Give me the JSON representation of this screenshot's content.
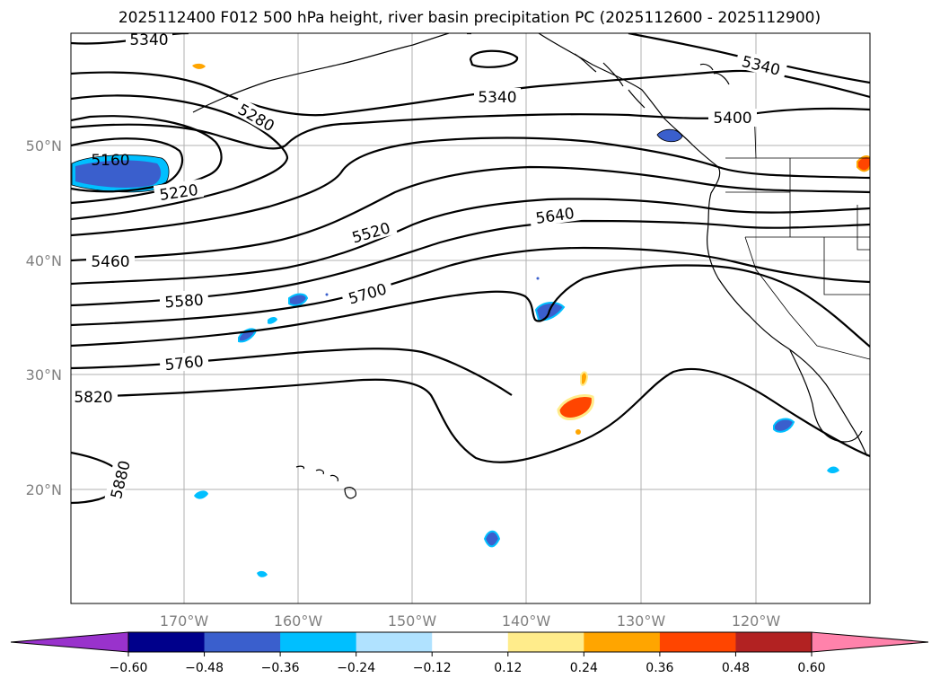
{
  "title": "2025112400 F012 500 hPa height, river basin precipitation PC (2025112600 - 2025112900)",
  "map": {
    "lat_ticks": [
      "50°N",
      "40°N",
      "30°N",
      "20°N"
    ],
    "lon_ticks": [
      "170°W",
      "160°W",
      "150°W",
      "140°W",
      "130°W",
      "120°W"
    ],
    "contour_labels": [
      "5340",
      "5340",
      "5340",
      "5280",
      "5400",
      "5160",
      "5220",
      "5520",
      "5640",
      "5460",
      "5580",
      "5700",
      "5760",
      "5820",
      "5880"
    ]
  },
  "colorbar": {
    "ticks": [
      "−0.60",
      "−0.48",
      "−0.36",
      "−0.24",
      "−0.12",
      "0.12",
      "0.24",
      "0.36",
      "0.48",
      "0.60"
    ],
    "colors": [
      "#9932cc",
      "#00008b",
      "#3a5fcd",
      "#00bfff",
      "#b0e2ff",
      "#ffffff",
      "#ffec8b",
      "#ffa500",
      "#ff4500",
      "#b22222",
      "#ff82ab"
    ]
  },
  "chart_data": {
    "type": "map-contour",
    "title": "2025112400 F012 500 hPa height, river basin precipitation PC (2025112600 - 2025112900)",
    "variable": "500 hPa geopotential height (m) with precipitation PC shading",
    "contour_levels": [
      5160,
      5220,
      5280,
      5340,
      5400,
      5460,
      5520,
      5580,
      5640,
      5700,
      5760,
      5820,
      5880
    ],
    "lon_range": [
      -180,
      -110
    ],
    "lat_range": [
      10,
      60
    ],
    "colorbar_levels": [
      -0.6,
      -0.48,
      -0.36,
      -0.24,
      -0.12,
      0.12,
      0.24,
      0.36,
      0.48,
      0.6
    ]
  }
}
